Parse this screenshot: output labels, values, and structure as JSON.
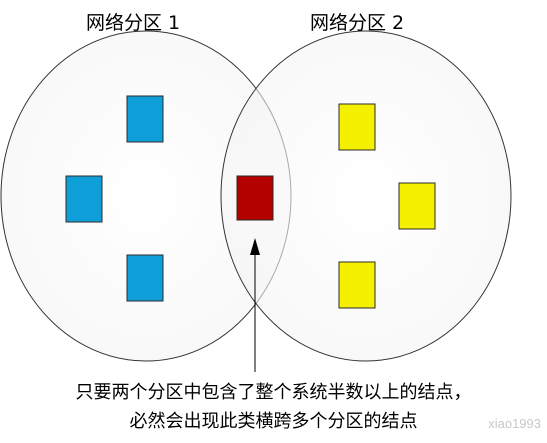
{
  "partitions": [
    {
      "label": "网络分区 1",
      "node_color": "#0f9fd8",
      "node_count": 3
    },
    {
      "label": "网络分区 2",
      "node_color": "#f5ef00",
      "node_count": 3
    }
  ],
  "shared_node": {
    "color": "#b50000"
  },
  "caption": {
    "line1": "只要两个分区中包含了整个系统半数以上的结点，",
    "line2": "必然会出现此类横跨多个分区的结点"
  },
  "watermark": "xiao1993"
}
